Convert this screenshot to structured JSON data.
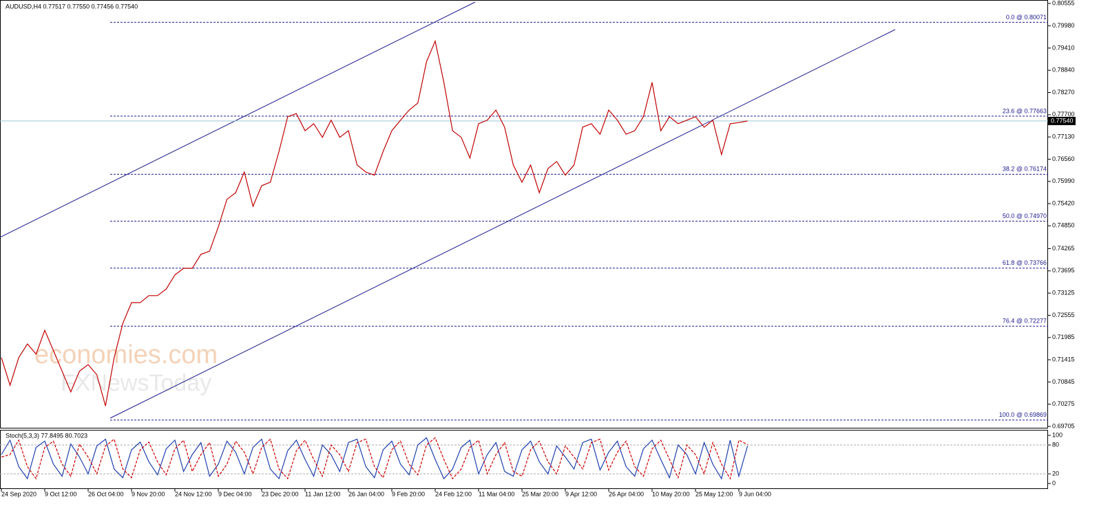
{
  "chart_data": [
    {
      "type": "line",
      "title": "AUDUSD,H4 0.77517 0.77550 0.77456 0.77540",
      "color": "#c00000",
      "categories": [
        "24 Sep 2020",
        null,
        null,
        null,
        null,
        "9 Oct 12:00",
        null,
        null,
        null,
        null,
        "26 Oct 04:00",
        null,
        null,
        null,
        null,
        "9 Nov 20:00",
        null,
        null,
        null,
        null,
        "24 Nov 12:00",
        null,
        null,
        null,
        null,
        "9 Dec 04:00",
        null,
        null,
        null,
        null,
        "23 Dec 20:00",
        null,
        null,
        null,
        null,
        "11 Jan 12:00",
        null,
        null,
        null,
        null,
        "26 Jan 04:00",
        null,
        null,
        null,
        null,
        "9 Feb 20:00",
        null,
        null,
        null,
        null,
        "24 Feb 12:00",
        null,
        null,
        null,
        null,
        "11 Mar 04:00",
        null,
        null,
        null,
        null,
        "25 Mar 20:00",
        null,
        null,
        null,
        null,
        "9 Apr 12:00",
        null,
        null,
        null,
        null,
        "26 Apr 04:00",
        null,
        null,
        null,
        null,
        "10 May 20:00",
        null,
        null,
        null,
        null,
        "25 May 12:00",
        null,
        null,
        null,
        null,
        "9 Jun 04:00",
        null
      ],
      "values": [
        0.7147,
        0.7076,
        0.7147,
        0.7182,
        0.7156,
        0.7217,
        0.7165,
        0.7112,
        0.7059,
        0.7112,
        0.7129,
        0.7103,
        0.7023,
        0.7147,
        0.7235,
        0.7288,
        0.7288,
        0.7306,
        0.7306,
        0.7323,
        0.7359,
        0.7376,
        0.7376,
        0.7412,
        0.742,
        0.7482,
        0.7553,
        0.757,
        0.7623,
        0.7535,
        0.7588,
        0.7597,
        0.7676,
        0.7765,
        0.7773,
        0.7729,
        0.7747,
        0.7712,
        0.7756,
        0.7712,
        0.7729,
        0.7641,
        0.7623,
        0.7615,
        0.7676,
        0.7729,
        0.7756,
        0.7782,
        0.78,
        0.7906,
        0.7959,
        0.7853,
        0.7729,
        0.7712,
        0.7659,
        0.7747,
        0.7756,
        0.7782,
        0.7738,
        0.7641,
        0.7597,
        0.7641,
        0.757,
        0.7632,
        0.765,
        0.7615,
        0.7641,
        0.7738,
        0.7747,
        0.772,
        0.7782,
        0.7756,
        0.772,
        0.7729,
        0.7765,
        0.7853,
        0.7729,
        0.7765,
        0.7747,
        0.7756,
        0.7765,
        0.7738,
        0.7756,
        0.7668,
        0.7747,
        0.775,
        0.7754
      ],
      "ylim": [
        0.69705,
        0.80555
      ],
      "yticks": [
        0.80555,
        {
          "value": 0.7998,
          "label": "0.79980"
        },
        {
          "value": 0.7941,
          "label": "0.79410"
        },
        {
          "value": 0.7884,
          "label": "0.78840"
        },
        {
          "value": 0.7827,
          "label": "0.78270"
        },
        {
          "value": 0.777,
          "label": "0.77700"
        },
        {
          "value": 0.7713,
          "label": "0.77130"
        },
        {
          "value": 0.7656,
          "label": "0.76560"
        },
        {
          "value": 0.7599,
          "label": "0.75990"
        },
        {
          "value": 0.7542,
          "label": "0.75420"
        },
        {
          "value": 0.7485,
          "label": "0.74850"
        },
        0.74265,
        0.73695,
        0.73125,
        0.72555,
        0.71985,
        0.71415,
        0.70845,
        0.70275,
        0.69705
      ],
      "current_price": {
        "value": 0.7754,
        "label": "0.77540"
      },
      "fib_levels": [
        {
          "value": 0.80071,
          "label": "0.0 @ 0.80071"
        },
        {
          "value": 0.77663,
          "label": "23.6 @ 0.77663"
        },
        {
          "value": 0.76174,
          "label": "38.2 @ 0.76174"
        },
        {
          "value": 0.7497,
          "label": "50.0 @ 0.74970"
        },
        {
          "value": 0.73766,
          "label": "61.8 @ 0.73766"
        },
        {
          "value": 0.72277,
          "label": "76.4 @ 0.72277"
        },
        {
          "value": 0.69869,
          "label": "100.0 @ 0.69869"
        }
      ],
      "watermark": [
        "economies.com",
        "FXNewsToday"
      ]
    },
    {
      "type": "line",
      "title": "Stoch(5,3,3) 77.8495 80.7023",
      "series": [
        {
          "color": "#1e3fae",
          "values": [
            60,
            90,
            35,
            10,
            75,
            88,
            40,
            15,
            82,
            55,
            20,
            78,
            92,
            30,
            12,
            70,
            86,
            45,
            18,
            72,
            90,
            25,
            60,
            85,
            15,
            40,
            88,
            65,
            20,
            75,
            92,
            30,
            10,
            68,
            90,
            50,
            15,
            80,
            60,
            25,
            85,
            92,
            35,
            12,
            70,
            88,
            40,
            18,
            80,
            95,
            50,
            10,
            30,
            75,
            90,
            20,
            60,
            85,
            25,
            15,
            70,
            88,
            45,
            20,
            78,
            55,
            30,
            85,
            92,
            28,
            65,
            88,
            35,
            15,
            72,
            90,
            50,
            12,
            80,
            60,
            20,
            85,
            40,
            10,
            90,
            15,
            78
          ]
        },
        {
          "color": "#cc0000",
          "values": [
            55,
            60,
            90,
            35,
            10,
            75,
            88,
            40,
            15,
            82,
            55,
            20,
            78,
            92,
            30,
            12,
            70,
            86,
            45,
            18,
            72,
            90,
            25,
            60,
            85,
            15,
            40,
            88,
            65,
            20,
            75,
            92,
            30,
            10,
            68,
            90,
            50,
            15,
            80,
            60,
            25,
            85,
            92,
            35,
            12,
            70,
            88,
            40,
            18,
            80,
            95,
            50,
            10,
            30,
            75,
            90,
            20,
            60,
            85,
            25,
            15,
            70,
            88,
            45,
            20,
            78,
            55,
            30,
            85,
            92,
            28,
            65,
            88,
            35,
            15,
            72,
            90,
            50,
            12,
            80,
            60,
            20,
            85,
            40,
            10,
            90,
            81
          ]
        }
      ],
      "ylim": [
        0,
        100
      ],
      "yticks": [
        0,
        20,
        80,
        100
      ]
    }
  ]
}
